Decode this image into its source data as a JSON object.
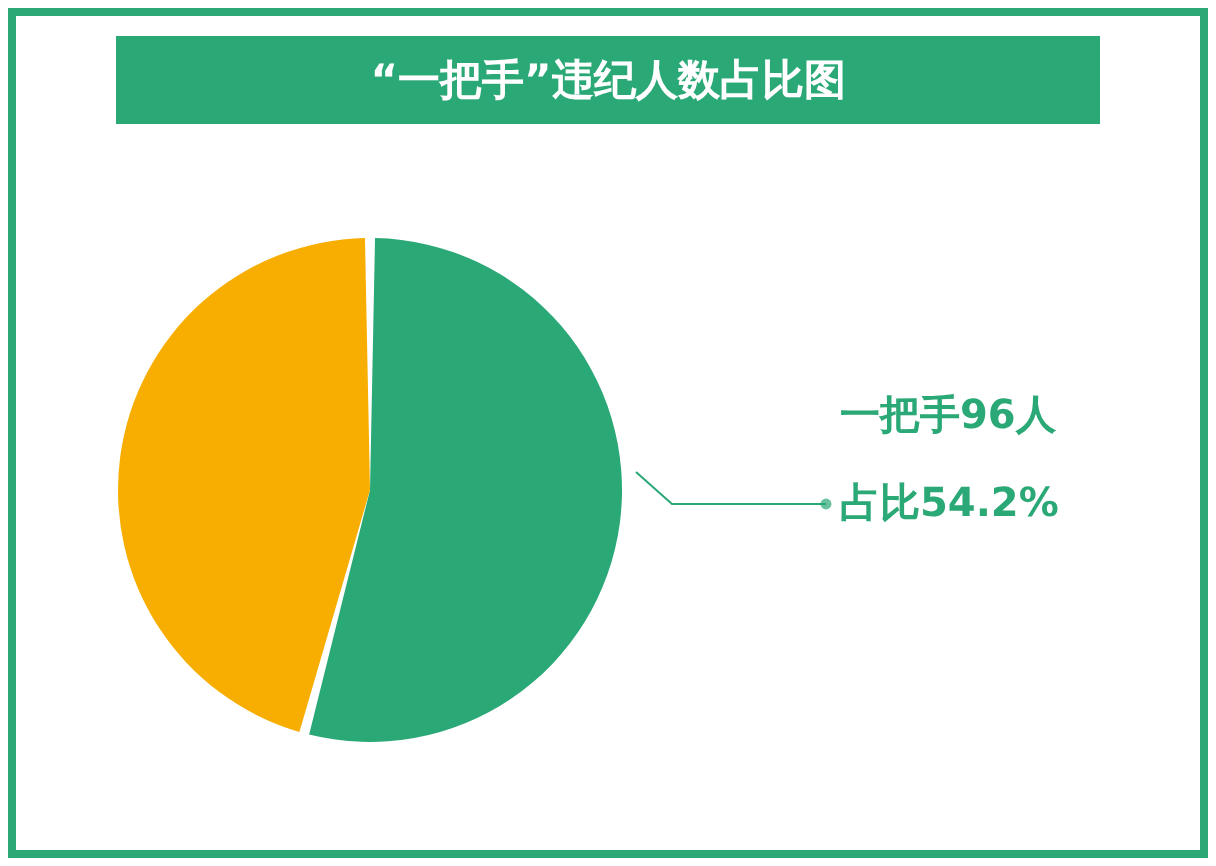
{
  "chart_data": {
    "type": "pie",
    "title": "“一把手”违纪人数占比图",
    "categories": [
      null,
      null
    ],
    "values": [
      54.2,
      45.8
    ],
    "colors": [
      "#2aa876",
      "#f7ae00"
    ],
    "annotations": [
      "一把手96人",
      "占比54.2%"
    ]
  }
}
